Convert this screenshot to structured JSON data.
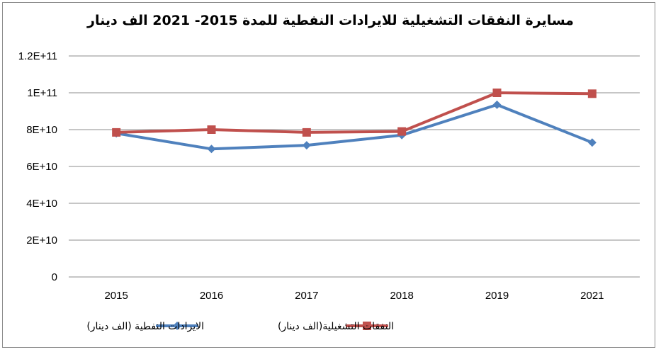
{
  "chart_data": {
    "type": "line",
    "title": "مسايرة النفقات التشغيلية للايرادات النفطية للمدة 2015- 2021 الف دينار",
    "categories": [
      "2015",
      "2016",
      "2017",
      "2018",
      "2019",
      "2021"
    ],
    "y_tick_labels": [
      "0",
      "2E+10",
      "4E+10",
      "6E+10",
      "8E+10",
      "1E+11",
      "1.2E+11"
    ],
    "y_ticks": [
      0,
      20000000000,
      40000000000,
      60000000000,
      80000000000,
      100000000000,
      120000000000
    ],
    "ylim": [
      0,
      120000000000
    ],
    "xlabel": "",
    "ylabel": "",
    "grid": true,
    "legend_position": "bottom",
    "series": [
      {
        "name": "الايرادات النفطية (الف دينار)",
        "color": "#4f81bd",
        "marker": "diamond",
        "values": [
          78000000000,
          69500000000,
          71500000000,
          77000000000,
          93500000000,
          73000000000
        ]
      },
      {
        "name": "النفقات التشغيلية(الف دينار)",
        "color": "#c0504d",
        "marker": "square",
        "values": [
          78500000000,
          80000000000,
          78500000000,
          79000000000,
          100000000000,
          99500000000
        ]
      }
    ]
  }
}
